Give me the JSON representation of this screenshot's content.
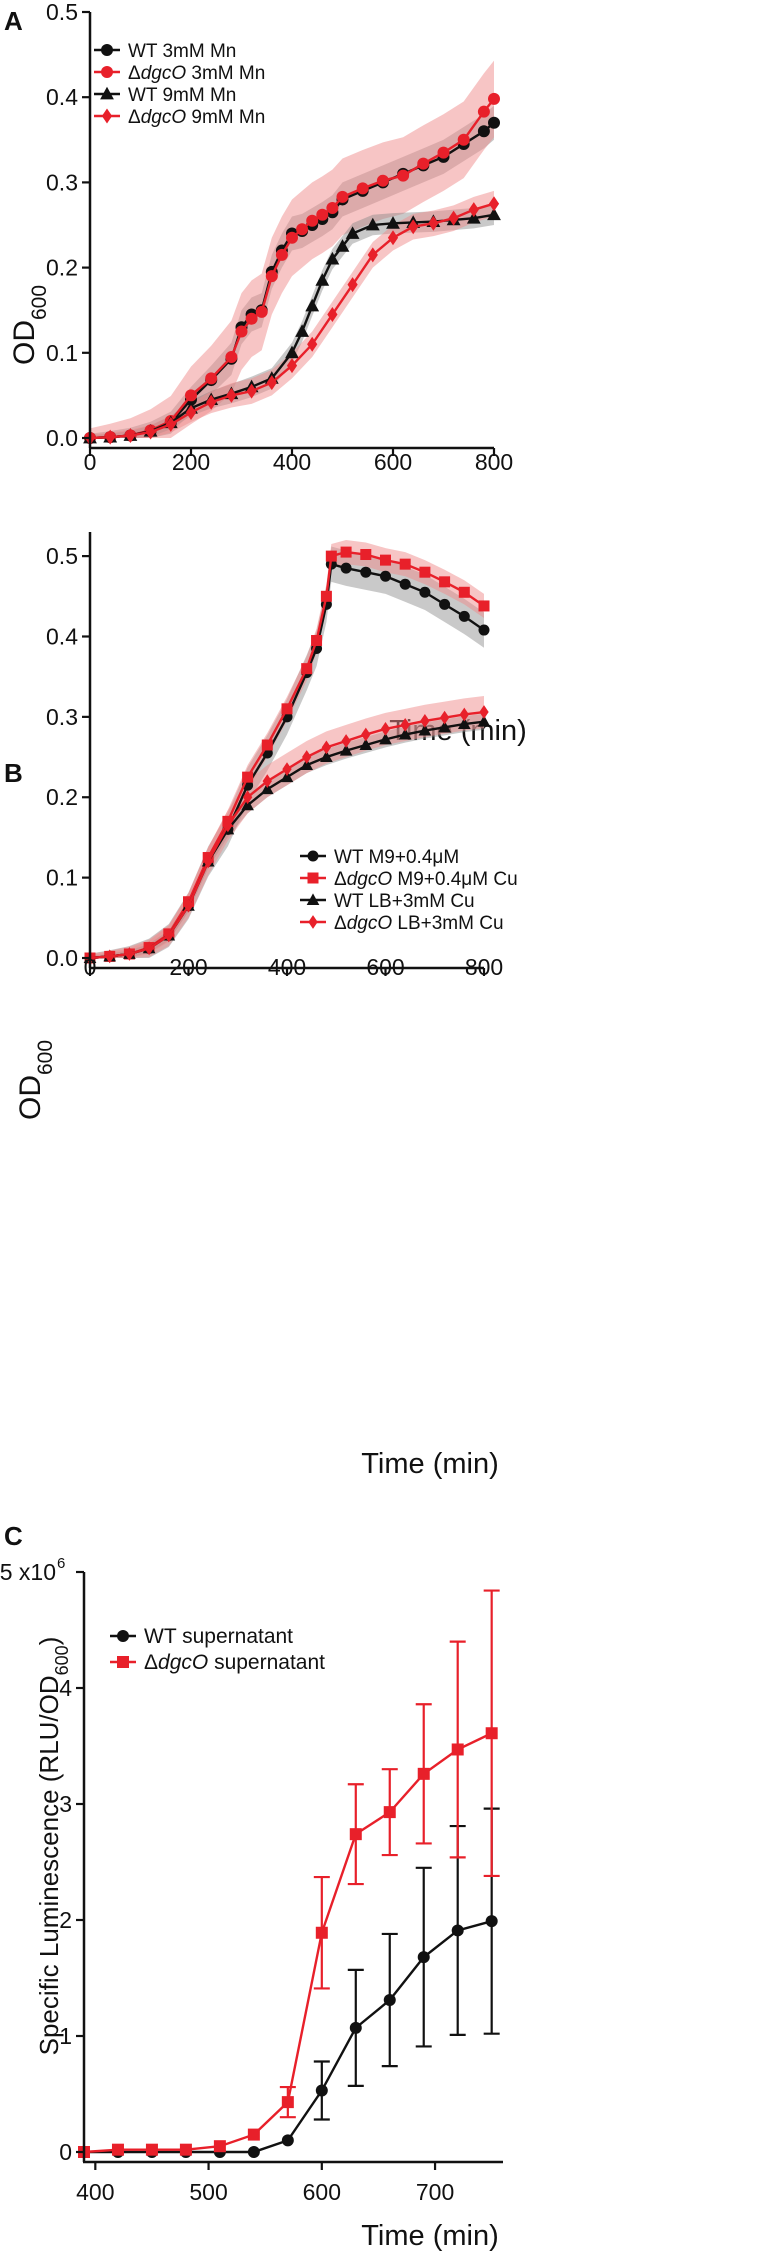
{
  "colors": {
    "wt": "#111111",
    "dgco": "#e8202a",
    "wt_band": "#888888",
    "dgco_band": "#f08c8c"
  },
  "chart_data": [
    {
      "panel": "A",
      "type": "line",
      "title": "",
      "xlabel": "Time (min)",
      "ylabel_main": "OD",
      "ylabel_sub": "600",
      "xlim": [
        0,
        800
      ],
      "ylim": [
        0,
        0.5
      ],
      "xticks": [
        0,
        200,
        400,
        600,
        800
      ],
      "xtick_labels": [
        "0",
        "200",
        "400",
        "600",
        "800"
      ],
      "yticks": [
        0,
        0.1,
        0.2,
        0.3,
        0.4,
        0.5
      ],
      "ytick_labels": [
        "0.0",
        "0.1",
        "0.2",
        "0.3",
        "0.4",
        "0.5"
      ],
      "legend_position": "top-left",
      "series": [
        {
          "name": "WT 3mM Mn",
          "label_prefix": "WT",
          "label_italic": "",
          "label_suffix": " 3mM Mn",
          "color": "#111111",
          "marker": "circle",
          "x": [
            0,
            40,
            80,
            120,
            160,
            200,
            240,
            280,
            300,
            320,
            340,
            360,
            380,
            400,
            420,
            440,
            460,
            480,
            500,
            540,
            580,
            620,
            660,
            700,
            740,
            780,
            800
          ],
          "y": [
            0,
            0.001,
            0.003,
            0.008,
            0.018,
            0.045,
            0.068,
            0.093,
            0.13,
            0.145,
            0.15,
            0.195,
            0.22,
            0.24,
            0.243,
            0.25,
            0.257,
            0.265,
            0.28,
            0.29,
            0.3,
            0.31,
            0.32,
            0.33,
            0.345,
            0.36,
            0.37
          ],
          "band": 0.02
        },
        {
          "name": "ΔdgcO 3mM Mn",
          "label_prefix": "Δ",
          "label_italic": "dgcO",
          "label_suffix": " 3mM Mn",
          "color": "#e8202a",
          "marker": "circle",
          "x": [
            0,
            40,
            80,
            120,
            160,
            200,
            240,
            280,
            300,
            320,
            340,
            360,
            380,
            400,
            420,
            440,
            460,
            480,
            500,
            540,
            580,
            620,
            660,
            700,
            740,
            780,
            800
          ],
          "y": [
            0,
            0.001,
            0.003,
            0.009,
            0.02,
            0.05,
            0.07,
            0.095,
            0.125,
            0.14,
            0.148,
            0.19,
            0.215,
            0.235,
            0.245,
            0.255,
            0.262,
            0.27,
            0.283,
            0.293,
            0.302,
            0.308,
            0.322,
            0.335,
            0.35,
            0.383,
            0.398
          ],
          "band": 0.045
        },
        {
          "name": "WT 9mM Mn",
          "label_prefix": "WT",
          "label_italic": "",
          "label_suffix": " 9mM Mn",
          "color": "#111111",
          "marker": "triangle",
          "x": [
            0,
            40,
            80,
            120,
            160,
            200,
            240,
            280,
            320,
            360,
            400,
            420,
            440,
            460,
            480,
            500,
            520,
            560,
            600,
            640,
            680,
            720,
            760,
            800
          ],
          "y": [
            0,
            0.001,
            0.003,
            0.008,
            0.018,
            0.035,
            0.045,
            0.052,
            0.06,
            0.07,
            0.1,
            0.125,
            0.155,
            0.185,
            0.21,
            0.225,
            0.24,
            0.25,
            0.252,
            0.253,
            0.254,
            0.256,
            0.258,
            0.262
          ],
          "band": 0.012
        },
        {
          "name": "ΔdgcO 9mM Mn",
          "label_prefix": "Δ",
          "label_italic": "dgcO",
          "label_suffix": " 9mM Mn",
          "color": "#e8202a",
          "marker": "diamond",
          "x": [
            0,
            40,
            80,
            120,
            160,
            200,
            240,
            280,
            320,
            360,
            400,
            440,
            480,
            520,
            560,
            600,
            640,
            680,
            720,
            760,
            800
          ],
          "y": [
            0,
            0.001,
            0.003,
            0.007,
            0.016,
            0.03,
            0.042,
            0.05,
            0.055,
            0.065,
            0.085,
            0.11,
            0.145,
            0.18,
            0.215,
            0.235,
            0.248,
            0.252,
            0.258,
            0.268,
            0.275
          ],
          "band": 0.015
        }
      ]
    },
    {
      "panel": "B",
      "type": "line",
      "title": "",
      "xlabel": "Time (min)",
      "ylabel_main": "OD",
      "ylabel_sub": "600",
      "xlim": [
        0,
        800
      ],
      "ylim": [
        0,
        0.53
      ],
      "xticks": [
        0,
        200,
        400,
        600,
        800
      ],
      "xtick_labels": [
        "0",
        "200",
        "400",
        "600",
        "800"
      ],
      "yticks": [
        0,
        0.1,
        0.2,
        0.3,
        0.4,
        0.5
      ],
      "ytick_labels": [
        "0.0",
        "0.1",
        "0.2",
        "0.3",
        "0.4",
        "0.5"
      ],
      "legend_position": "bottom-right",
      "series": [
        {
          "name": "WT M9+0.4μM",
          "label_prefix": "WT",
          "label_italic": "",
          "label_suffix": " M9+0.4μM",
          "color": "#111111",
          "marker": "circle",
          "x": [
            0,
            40,
            80,
            120,
            160,
            200,
            240,
            280,
            320,
            360,
            400,
            440,
            460,
            480,
            490,
            520,
            560,
            600,
            640,
            680,
            720,
            760,
            800
          ],
          "y": [
            0,
            0.002,
            0.005,
            0.012,
            0.028,
            0.065,
            0.12,
            0.16,
            0.215,
            0.255,
            0.3,
            0.355,
            0.385,
            0.44,
            0.49,
            0.485,
            0.48,
            0.475,
            0.465,
            0.455,
            0.44,
            0.425,
            0.408
          ],
          "band": 0.022
        },
        {
          "name": "ΔdgcO M9+0.4μM Cu",
          "label_prefix": "Δ",
          "label_italic": "dgcO",
          "label_suffix": " M9+0.4μM Cu",
          "color": "#e8202a",
          "marker": "square",
          "x": [
            0,
            40,
            80,
            120,
            160,
            200,
            240,
            280,
            320,
            360,
            400,
            440,
            460,
            480,
            490,
            520,
            560,
            600,
            640,
            680,
            720,
            760,
            800
          ],
          "y": [
            0,
            0.002,
            0.005,
            0.013,
            0.03,
            0.07,
            0.125,
            0.17,
            0.225,
            0.265,
            0.31,
            0.36,
            0.395,
            0.45,
            0.5,
            0.505,
            0.502,
            0.495,
            0.49,
            0.48,
            0.468,
            0.455,
            0.438
          ],
          "band": 0.015
        },
        {
          "name": "WT LB+3mM Cu",
          "label_prefix": "WT",
          "label_italic": "",
          "label_suffix": " LB+3mM Cu",
          "color": "#111111",
          "marker": "triangle",
          "x": [
            0,
            40,
            80,
            120,
            160,
            200,
            240,
            280,
            320,
            360,
            400,
            440,
            480,
            520,
            560,
            600,
            640,
            680,
            720,
            760,
            800
          ],
          "y": [
            0,
            0.002,
            0.005,
            0.012,
            0.028,
            0.065,
            0.12,
            0.16,
            0.19,
            0.21,
            0.225,
            0.24,
            0.25,
            0.258,
            0.265,
            0.272,
            0.278,
            0.283,
            0.287,
            0.291,
            0.294
          ],
          "band": 0.01
        },
        {
          "name": "ΔdgcO LB+3mM Cu",
          "label_prefix": "Δ",
          "label_italic": "dgcO",
          "label_suffix": " LB+3mM Cu",
          "color": "#e8202a",
          "marker": "diamond",
          "x": [
            0,
            40,
            80,
            120,
            160,
            200,
            240,
            280,
            320,
            360,
            400,
            440,
            480,
            520,
            560,
            600,
            640,
            680,
            720,
            760,
            800
          ],
          "y": [
            0,
            0.002,
            0.005,
            0.012,
            0.028,
            0.065,
            0.12,
            0.165,
            0.2,
            0.22,
            0.235,
            0.25,
            0.262,
            0.27,
            0.278,
            0.285,
            0.29,
            0.295,
            0.299,
            0.303,
            0.306
          ],
          "band": 0.02
        }
      ]
    },
    {
      "panel": "C",
      "type": "line",
      "title": "",
      "xlabel": "Time (min)",
      "ylabel": "Specific Luminescence (RLU/OD",
      "ylabel_sub": "600",
      "ylabel_close": ")",
      "xlim": [
        390,
        760
      ],
      "ylim": [
        0,
        5
      ],
      "xticks": [
        400,
        500,
        600,
        700
      ],
      "xtick_labels": [
        "400",
        "500",
        "600",
        "700"
      ],
      "yticks": [
        0,
        1,
        2,
        3,
        4,
        5
      ],
      "ytick_labels": [
        "0",
        "1",
        "2",
        "3",
        "4",
        "5 x10"
      ],
      "y_exponent": "6",
      "legend_position": "top-left",
      "series": [
        {
          "name": "WT supernatant",
          "label_prefix": "WT supernatant",
          "label_italic": "",
          "label_suffix": "",
          "color": "#111111",
          "marker": "circle",
          "x": [
            390,
            420,
            450,
            480,
            510,
            540,
            570,
            600,
            630,
            660,
            690,
            720,
            750
          ],
          "y": [
            0,
            0,
            0,
            0,
            0,
            0,
            0.1,
            0.53,
            1.07,
            1.31,
            1.68,
            1.91,
            1.99
          ],
          "err": [
            0,
            0,
            0,
            0,
            0,
            0,
            0,
            0.25,
            0.5,
            0.57,
            0.77,
            0.9,
            0.97
          ]
        },
        {
          "name": "ΔdgcO supernatant",
          "label_prefix": "Δ",
          "label_italic": "dgcO",
          "label_suffix": " supernatant",
          "color": "#e8202a",
          "marker": "square",
          "x": [
            390,
            420,
            450,
            480,
            510,
            540,
            570,
            600,
            630,
            660,
            690,
            720,
            750
          ],
          "y": [
            0,
            0.02,
            0.02,
            0.02,
            0.05,
            0.15,
            0.43,
            1.89,
            2.74,
            2.93,
            3.26,
            3.47,
            3.61
          ],
          "err": [
            0,
            0,
            0,
            0,
            0,
            0,
            0.13,
            0.48,
            0.43,
            0.37,
            0.6,
            0.93,
            1.23
          ]
        }
      ]
    }
  ]
}
